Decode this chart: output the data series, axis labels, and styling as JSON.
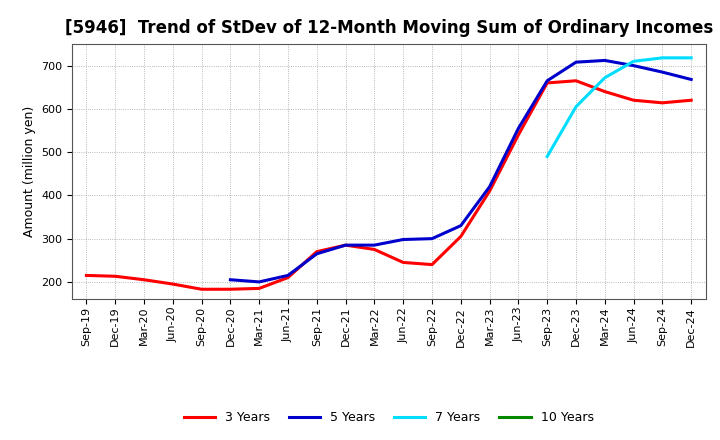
{
  "title": "[5946]  Trend of StDev of 12-Month Moving Sum of Ordinary Incomes",
  "ylabel": "Amount (million yen)",
  "background_color": "#ffffff",
  "grid_color": "#999999",
  "ylim": [
    160,
    750
  ],
  "yticks": [
    200,
    300,
    400,
    500,
    600,
    700
  ],
  "x_labels": [
    "Sep-19",
    "Dec-19",
    "Mar-20",
    "Jun-20",
    "Sep-20",
    "Dec-20",
    "Mar-21",
    "Jun-21",
    "Sep-21",
    "Dec-21",
    "Mar-22",
    "Jun-22",
    "Sep-22",
    "Dec-22",
    "Mar-23",
    "Jun-23",
    "Sep-23",
    "Dec-23",
    "Mar-24",
    "Jun-24",
    "Sep-24",
    "Dec-24"
  ],
  "series_3y": [
    215,
    213,
    205,
    195,
    183,
    183,
    185,
    210,
    270,
    285,
    275,
    245,
    240,
    305,
    410,
    540,
    660,
    665,
    640,
    620,
    614,
    620
  ],
  "series_5y": [
    null,
    null,
    null,
    null,
    null,
    205,
    200,
    215,
    265,
    285,
    285,
    298,
    300,
    330,
    420,
    555,
    665,
    708,
    712,
    700,
    685,
    668
  ],
  "series_7y": [
    null,
    null,
    null,
    null,
    null,
    null,
    null,
    null,
    null,
    null,
    null,
    null,
    null,
    null,
    null,
    null,
    490,
    605,
    672,
    710,
    718,
    718
  ],
  "series_10y": [
    null,
    null,
    null,
    null,
    null,
    null,
    null,
    null,
    null,
    null,
    null,
    null,
    null,
    null,
    null,
    null,
    null,
    null,
    null,
    null,
    null,
    null
  ],
  "color_3y": "#ff0000",
  "color_5y": "#0000cc",
  "color_7y": "#00ddff",
  "color_10y": "#008800",
  "linewidth": 2.2,
  "legend_labels": [
    "3 Years",
    "5 Years",
    "7 Years",
    "10 Years"
  ],
  "title_fontsize": 12,
  "label_fontsize": 9,
  "tick_fontsize": 8
}
